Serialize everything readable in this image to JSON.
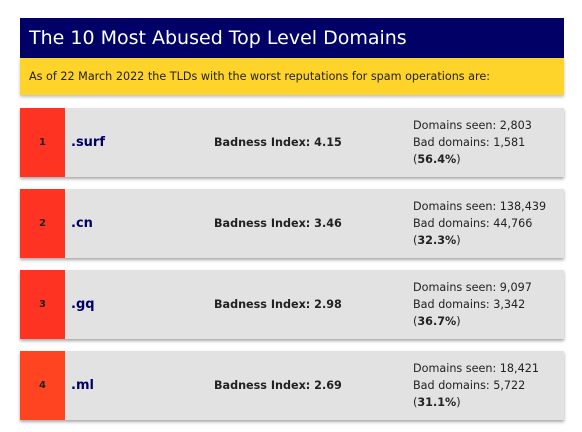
{
  "header": {
    "title": "The 10 Most Abused Top Level Domains",
    "subtitle": "As of 22 March 2022 the TLDs with the worst reputations for spam operations are:"
  },
  "labels": {
    "badness_prefix": "Badness Index: ",
    "domains_seen_prefix": "Domains seen: ",
    "bad_domains_prefix": "Bad domains: "
  },
  "colors": {
    "header_bg": "#000066",
    "subtitle_bg": "#ffd42a",
    "row_bg": "#e2e2e2"
  },
  "domains": [
    {
      "rank": "1",
      "tld": ".surf",
      "badness": "Badness Index: 4.15",
      "domains_seen": "Domains seen: 2,803",
      "bad_domains": "Bad domains: 1,581",
      "percent": "56.4%",
      "rank_color": "#ff3322"
    },
    {
      "rank": "2",
      "tld": ".cn",
      "badness": "Badness Index: 3.46",
      "domains_seen": "Domains seen: 138,439",
      "bad_domains": "Bad domains: 44,766",
      "percent": "32.3%",
      "rank_color": "#ff3322"
    },
    {
      "rank": "3",
      "tld": ".gq",
      "badness": "Badness Index: 2.98",
      "domains_seen": "Domains seen: 9,097",
      "bad_domains": "Bad domains: 3,342",
      "percent": "36.7%",
      "rank_color": "#ff3322"
    },
    {
      "rank": "4",
      "tld": ".ml",
      "badness": "Badness Index: 2.69",
      "domains_seen": "Domains seen: 18,421",
      "bad_domains": "Bad domains: 5,722",
      "percent": "31.1%",
      "rank_color": "#ff4422"
    }
  ]
}
